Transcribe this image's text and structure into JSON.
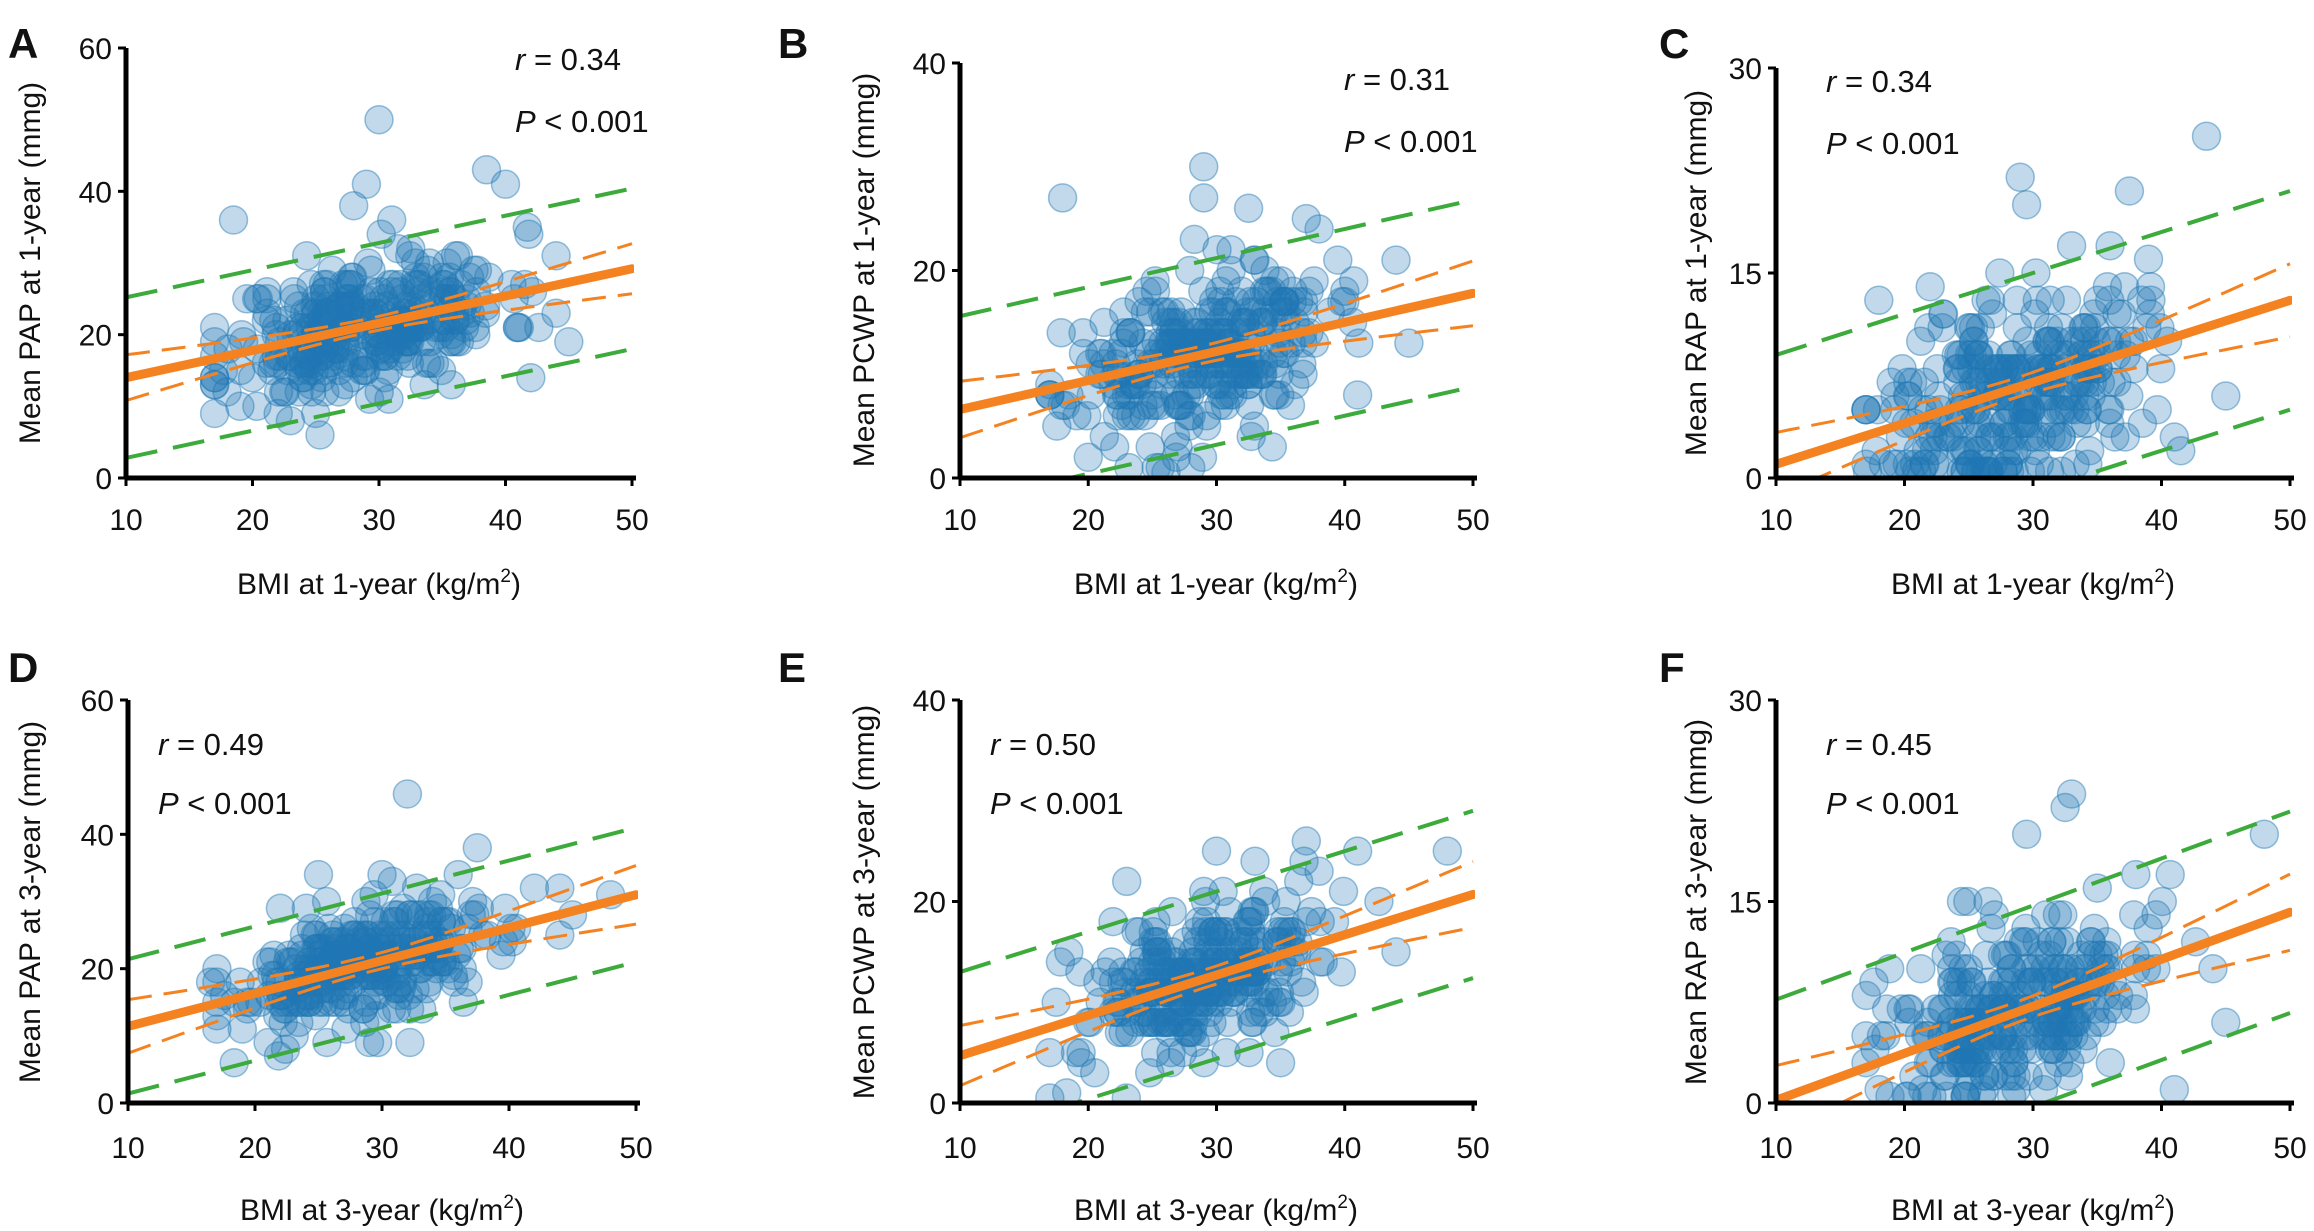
{
  "colors": {
    "points": "#1f77b4",
    "fit": "#f58220",
    "confidence_band": "#f58220",
    "prediction_band": "#3cab3c",
    "axis": "#000000"
  },
  "chart_data": [
    {
      "panel": "A",
      "type": "scatter",
      "xlabel_main": "BMI at 1-year (kg/m",
      "xlabel_sup": "2",
      "xlabel_end": ")",
      "ylabel": "Mean PAP at 1-year (mmg)",
      "xlim": [
        10,
        50
      ],
      "ylim": [
        0,
        60
      ],
      "xticks": [
        "10",
        "20",
        "30",
        "40",
        "50"
      ],
      "yticks": [
        "0",
        "20",
        "40",
        "60"
      ],
      "r_symbol": "r",
      "r_text": " = 0.34",
      "p_symbol": "P",
      "p_text": " < 0.001",
      "fit": {
        "intercept": 10.2,
        "slope": 0.38
      },
      "ci_halfwidth": 1.6,
      "pi_halfwidth": 11.2,
      "n_points": 320,
      "x_center": 29,
      "x_sd": 5.5,
      "resid_sd": 4.6,
      "seed": 11,
      "outliers": [
        [
          18.5,
          36
        ],
        [
          30,
          50
        ],
        [
          29,
          41
        ],
        [
          38.5,
          43
        ],
        [
          40,
          41
        ],
        [
          31,
          36
        ],
        [
          42,
          14
        ],
        [
          45,
          19
        ],
        [
          44,
          31
        ],
        [
          19,
          10
        ],
        [
          34,
          30
        ],
        [
          28,
          38
        ]
      ]
    },
    {
      "panel": "B",
      "type": "scatter",
      "xlabel_main": "BMI at 1-year (kg/m",
      "xlabel_sup": "2",
      "xlabel_end": ")",
      "ylabel": "Mean PCWP at 1-year (mmg)",
      "xlim": [
        10,
        50
      ],
      "ylim": [
        0,
        40
      ],
      "xticks": [
        "10",
        "20",
        "30",
        "40",
        "50"
      ],
      "yticks": [
        "0",
        "20",
        "40"
      ],
      "r_symbol": "r",
      "r_text": " = 0.31",
      "p_symbol": "P",
      "p_text": " < 0.001",
      "fit": {
        "intercept": 3.8,
        "slope": 0.28
      },
      "ci_halfwidth": 1.4,
      "pi_halfwidth": 9.0,
      "n_points": 300,
      "x_center": 28.5,
      "x_sd": 5.0,
      "resid_sd": 3.8,
      "seed": 23,
      "outliers": [
        [
          18,
          27
        ],
        [
          29,
          30
        ],
        [
          29,
          27
        ],
        [
          32.5,
          26
        ],
        [
          38,
          24
        ],
        [
          44,
          21
        ],
        [
          45,
          13
        ],
        [
          41,
          8
        ],
        [
          20,
          2
        ],
        [
          28,
          1
        ],
        [
          37,
          25
        ],
        [
          40,
          18
        ]
      ]
    },
    {
      "panel": "C",
      "type": "scatter",
      "xlabel_main": "BMI at 1-year (kg/m",
      "xlabel_sup": "2",
      "xlabel_end": ")",
      "ylabel": "Mean RAP at 1-year (mmg)",
      "xlim": [
        10,
        50
      ],
      "ylim": [
        0,
        30
      ],
      "xticks": [
        "10",
        "20",
        "30",
        "40",
        "50"
      ],
      "yticks": [
        "0",
        "15",
        "30"
      ],
      "r_symbol": "r",
      "r_text": " = 0.34",
      "p_symbol": "P",
      "p_text": " < 0.001",
      "fit": {
        "intercept": -2.0,
        "slope": 0.3
      },
      "ci_halfwidth": 1.2,
      "pi_halfwidth": 8.0,
      "n_points": 300,
      "x_center": 28.5,
      "x_sd": 5.0,
      "resid_sd": 3.6,
      "seed": 37,
      "outliers": [
        [
          43.5,
          25
        ],
        [
          29,
          22
        ],
        [
          29.5,
          20
        ],
        [
          37.5,
          21
        ],
        [
          18,
          13
        ],
        [
          17,
          1
        ],
        [
          45,
          6
        ],
        [
          41,
          3
        ],
        [
          41.5,
          2
        ],
        [
          36,
          17
        ],
        [
          33,
          17
        ],
        [
          22,
          14
        ]
      ]
    },
    {
      "panel": "D",
      "type": "scatter",
      "xlabel_main": "BMI at 3-year (kg/m",
      "xlabel_sup": "2",
      "xlabel_end": ")",
      "ylabel": "Mean PAP at 3-year (mmg)",
      "xlim": [
        10,
        50
      ],
      "ylim": [
        0,
        60
      ],
      "xticks": [
        "10",
        "20",
        "30",
        "40",
        "50"
      ],
      "yticks": [
        "0",
        "20",
        "40",
        "60"
      ],
      "r_symbol": "r",
      "r_text": " = 0.49",
      "p_symbol": "P",
      "p_text": " < 0.001",
      "fit": {
        "intercept": 6.5,
        "slope": 0.49
      },
      "ci_halfwidth": 2.0,
      "pi_halfwidth": 10.0,
      "n_points": 300,
      "x_center": 29,
      "x_sd": 5.5,
      "resid_sd": 4.3,
      "seed": 53,
      "outliers": [
        [
          32,
          46
        ],
        [
          37.5,
          38
        ],
        [
          25,
          34
        ],
        [
          16.5,
          18
        ],
        [
          48,
          31
        ],
        [
          45,
          28
        ],
        [
          19,
          11
        ],
        [
          30,
          34
        ],
        [
          42,
          32
        ],
        [
          44,
          25
        ],
        [
          36,
          34
        ],
        [
          22,
          29
        ]
      ]
    },
    {
      "panel": "E",
      "type": "scatter",
      "xlabel_main": "BMI at 3-year (kg/m",
      "xlabel_sup": "2",
      "xlabel_end": ")",
      "ylabel": "Mean PCWP at 3-year (mmg)",
      "xlim": [
        10,
        50
      ],
      "ylim": [
        0,
        40
      ],
      "xticks": [
        "10",
        "20",
        "30",
        "40",
        "50"
      ],
      "yticks": [
        "0",
        "20",
        "40"
      ],
      "r_symbol": "r",
      "r_text": " = 0.50",
      "p_symbol": "P",
      "p_text": " < 0.001",
      "fit": {
        "intercept": 0.7,
        "slope": 0.4
      },
      "ci_halfwidth": 1.5,
      "pi_halfwidth": 8.3,
      "n_points": 290,
      "x_center": 29,
      "x_sd": 5.0,
      "resid_sd": 3.6,
      "seed": 71,
      "outliers": [
        [
          48,
          25
        ],
        [
          37,
          26
        ],
        [
          41,
          25
        ],
        [
          30,
          25
        ],
        [
          17.5,
          10
        ],
        [
          20.5,
          3
        ],
        [
          35,
          4
        ],
        [
          44,
          15
        ],
        [
          29,
          21
        ],
        [
          23,
          22
        ],
        [
          33,
          24
        ],
        [
          38,
          23
        ]
      ]
    },
    {
      "panel": "F",
      "type": "scatter",
      "xlabel_main": "BMI at 3-year (kg/m",
      "xlabel_sup": "2",
      "xlabel_end": ")",
      "ylabel": "Mean RAP at 3-year (mmg)",
      "xlim": [
        10,
        50
      ],
      "ylim": [
        0,
        30
      ],
      "xticks": [
        "10",
        "20",
        "30",
        "40",
        "50"
      ],
      "yticks": [
        "0",
        "15",
        "30"
      ],
      "r_symbol": "r",
      "r_text": " = 0.45",
      "p_symbol": "P",
      "p_text": " < 0.001",
      "fit": {
        "intercept": -3.3,
        "slope": 0.35
      },
      "ci_halfwidth": 1.3,
      "pi_halfwidth": 7.5,
      "n_points": 290,
      "x_center": 29,
      "x_sd": 5.0,
      "resid_sd": 3.3,
      "seed": 89,
      "outliers": [
        [
          33,
          23
        ],
        [
          32.5,
          22
        ],
        [
          29.5,
          20
        ],
        [
          48,
          20
        ],
        [
          38,
          17
        ],
        [
          17,
          5
        ],
        [
          45,
          6
        ],
        [
          41,
          1
        ],
        [
          44,
          10
        ],
        [
          35,
          16
        ],
        [
          27,
          14
        ],
        [
          26.5,
          15
        ]
      ]
    }
  ]
}
